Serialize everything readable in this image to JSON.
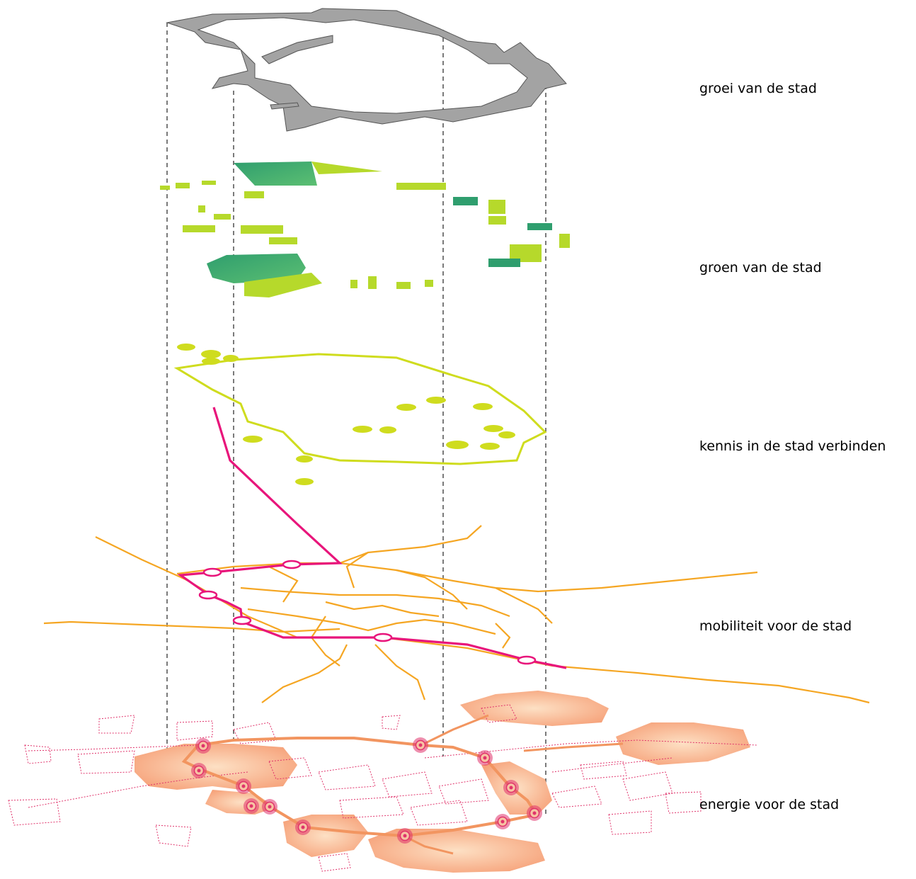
{
  "layers": [
    {
      "label": "groei van de stad"
    },
    {
      "label": "groen van de stad"
    },
    {
      "label": "kennis in de stad verbinden"
    },
    {
      "label": "mobiliteit voor de stad"
    },
    {
      "label": "energie voor de stad"
    }
  ],
  "colors": {
    "growth_fill": "#a3a3a3",
    "green_dark": "#2f9e6e",
    "green_light": "#b6d92b",
    "knowledge": "#cfdc1e",
    "mobility_roads": "#f5a623",
    "mobility_line": "#e8157b",
    "energy_fill": "#f6a27a",
    "energy_dotted": "#e0336b",
    "guides": "#222222"
  },
  "icons": {
    "station_marker": "ring-marker-icon",
    "energy_node": "target-node-icon"
  }
}
